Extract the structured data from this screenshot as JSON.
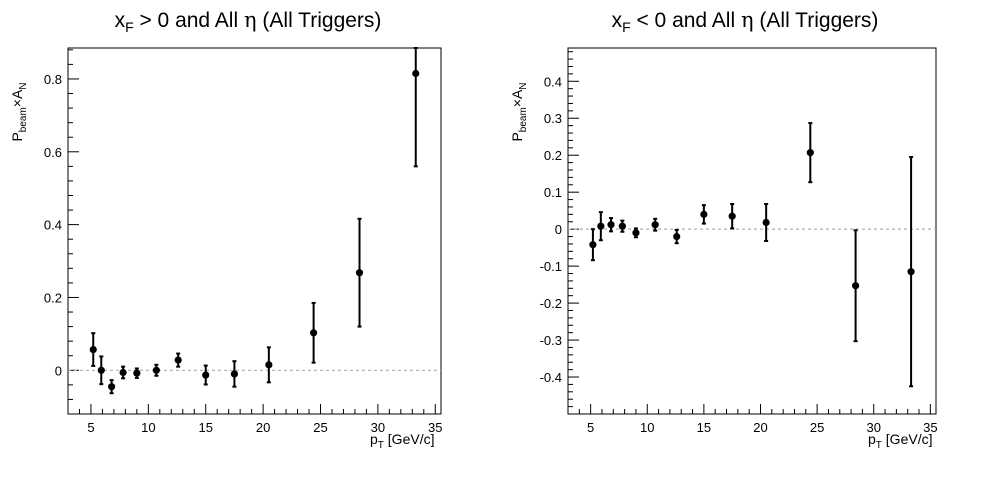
{
  "chart_data": [
    {
      "type": "scatter",
      "title_parts": {
        "x": "x",
        "sub": "F",
        "rest": " > 0 and All ",
        "eta": "η",
        "suffix": " (All Triggers)"
      },
      "xlabel": {
        "main": "p",
        "sub": "T",
        "unit": " [GeV/c]"
      },
      "ylabel": {
        "p": "P",
        "beam": "beam",
        "times": "×A",
        "n": "N"
      },
      "xlim": [
        3,
        35.5
      ],
      "ylim": [
        -0.12,
        0.885
      ],
      "xticks": [
        5,
        10,
        15,
        20,
        25,
        30,
        35
      ],
      "yticks": [
        0,
        0.2,
        0.4,
        0.6,
        0.8
      ],
      "ytick_labels": [
        "0",
        "0.2",
        "0.4",
        "0.6",
        "0.8"
      ],
      "reference_line": 0,
      "points": [
        {
          "x": 5.2,
          "y": 0.057,
          "err": 0.045
        },
        {
          "x": 5.9,
          "y": 0.0,
          "err": 0.038
        },
        {
          "x": 6.8,
          "y": -0.045,
          "err": 0.018
        },
        {
          "x": 7.8,
          "y": -0.006,
          "err": 0.016
        },
        {
          "x": 9.0,
          "y": -0.008,
          "err": 0.013
        },
        {
          "x": 10.7,
          "y": 0.0,
          "err": 0.015
        },
        {
          "x": 12.6,
          "y": 0.028,
          "err": 0.018
        },
        {
          "x": 15.0,
          "y": -0.013,
          "err": 0.026
        },
        {
          "x": 17.5,
          "y": -0.01,
          "err": 0.035
        },
        {
          "x": 20.5,
          "y": 0.015,
          "err": 0.048
        },
        {
          "x": 24.4,
          "y": 0.103,
          "err": 0.082
        },
        {
          "x": 28.4,
          "y": 0.268,
          "err": 0.148
        },
        {
          "x": 33.3,
          "y": 0.815,
          "err": 0.255
        }
      ]
    },
    {
      "type": "scatter",
      "title_parts": {
        "x": "x",
        "sub": "F",
        "rest": " < 0 and All ",
        "eta": "η",
        "suffix": " (All Triggers)"
      },
      "xlabel": {
        "main": "p",
        "sub": "T",
        "unit": " [GeV/c]"
      },
      "ylabel": {
        "p": "P",
        "beam": "beam",
        "times": "×A",
        "n": "N"
      },
      "xlim": [
        3,
        35.5
      ],
      "ylim": [
        -0.5,
        0.49
      ],
      "xticks": [
        5,
        10,
        15,
        20,
        25,
        30,
        35
      ],
      "yticks": [
        -0.4,
        -0.3,
        -0.2,
        -0.1,
        0,
        0.1,
        0.2,
        0.3,
        0.4
      ],
      "ytick_labels": [
        "-0.4",
        "-0.3",
        "-0.2",
        "-0.1",
        "0",
        "0.1",
        "0.2",
        "0.3",
        "0.4"
      ],
      "reference_line": 0,
      "points": [
        {
          "x": 5.2,
          "y": -0.042,
          "err": 0.042
        },
        {
          "x": 5.9,
          "y": 0.008,
          "err": 0.038
        },
        {
          "x": 6.8,
          "y": 0.012,
          "err": 0.018
        },
        {
          "x": 7.8,
          "y": 0.008,
          "err": 0.015
        },
        {
          "x": 9.0,
          "y": -0.01,
          "err": 0.012
        },
        {
          "x": 10.7,
          "y": 0.012,
          "err": 0.016
        },
        {
          "x": 12.6,
          "y": -0.02,
          "err": 0.018
        },
        {
          "x": 15.0,
          "y": 0.04,
          "err": 0.025
        },
        {
          "x": 17.5,
          "y": 0.035,
          "err": 0.033
        },
        {
          "x": 20.5,
          "y": 0.018,
          "err": 0.05
        },
        {
          "x": 24.4,
          "y": 0.207,
          "err": 0.08
        },
        {
          "x": 28.4,
          "y": -0.153,
          "err": 0.15
        },
        {
          "x": 33.3,
          "y": -0.115,
          "err": 0.31
        }
      ]
    }
  ]
}
